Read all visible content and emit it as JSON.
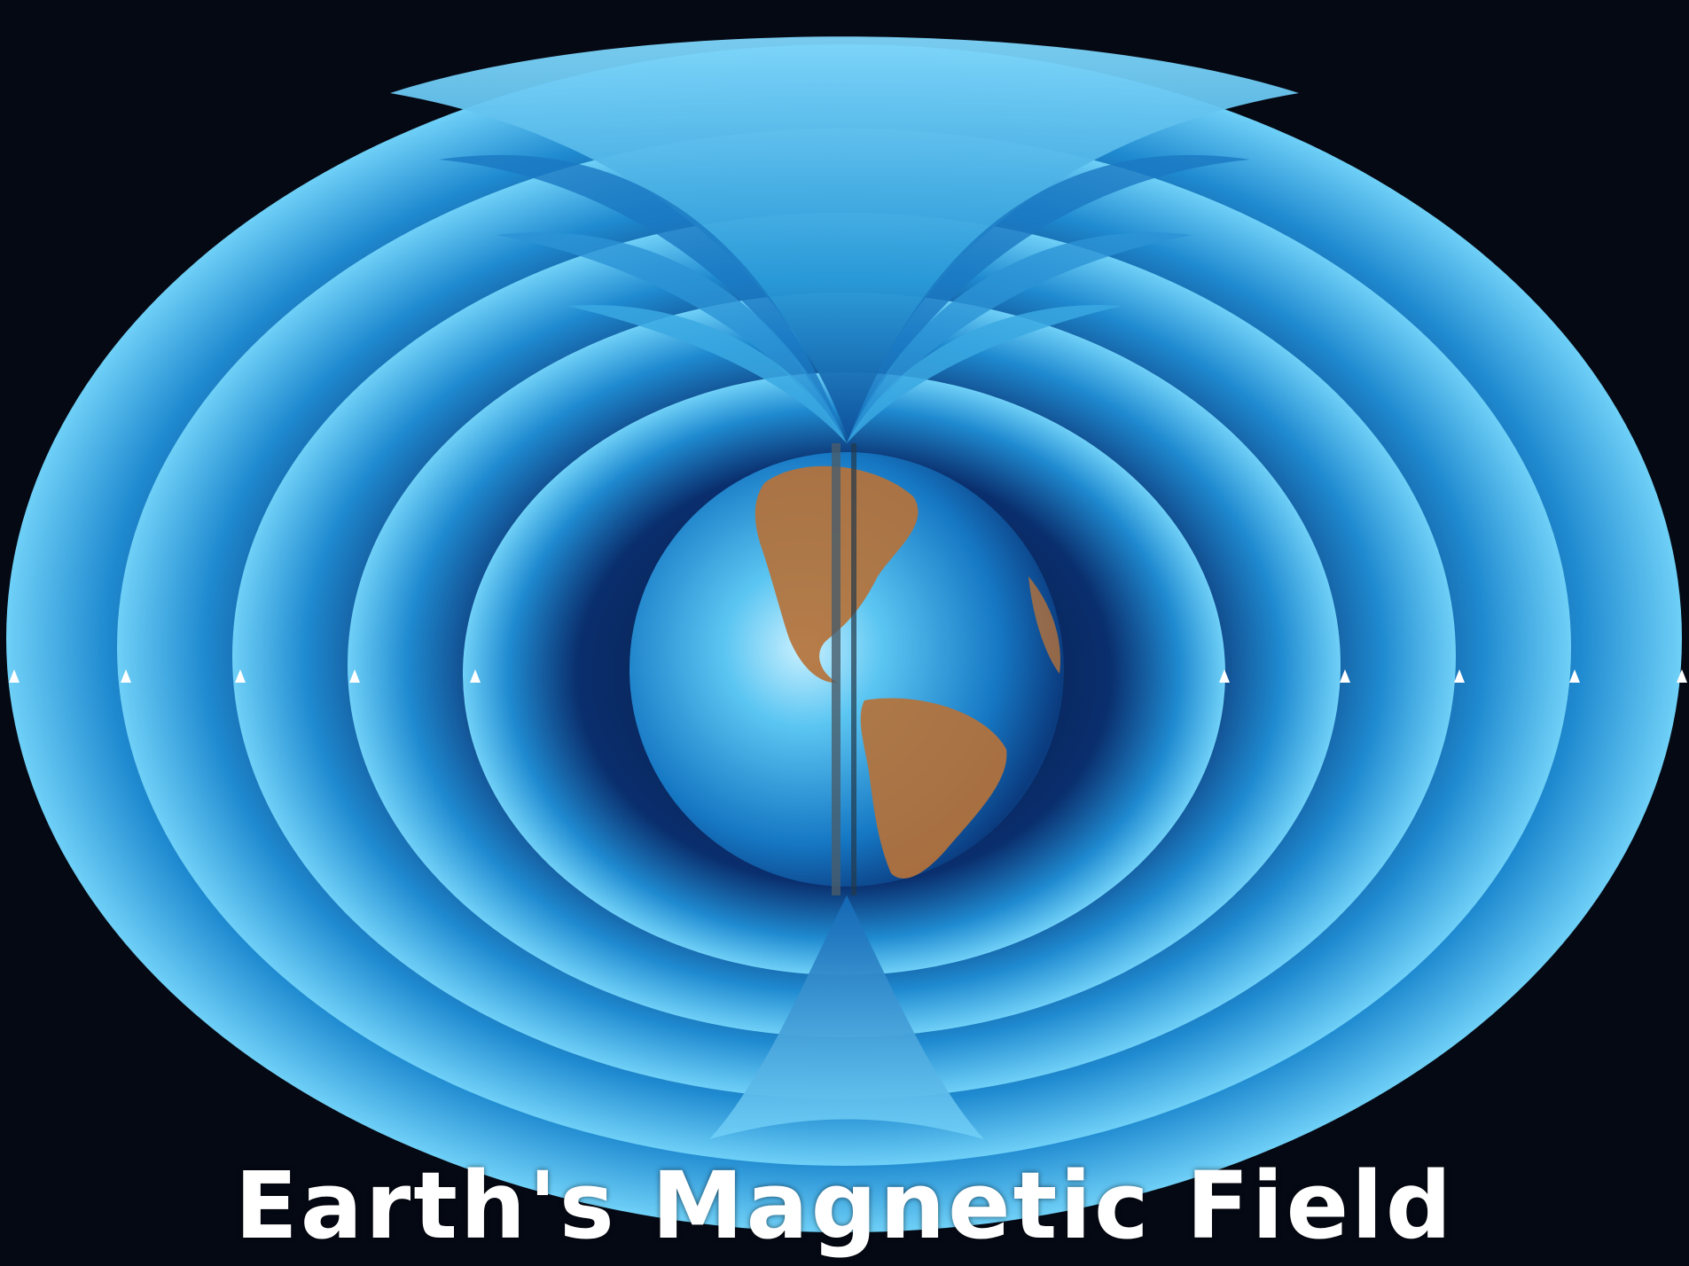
{
  "caption": "Earth's Magnetic Field",
  "colors": {
    "background": "#050914",
    "field_light": "#5cc6f2",
    "field_mid": "#1f8ad0",
    "field_dark": "#0a2f6e",
    "land": "#b5723a",
    "caption_text": "#ffffff"
  },
  "scene": {
    "field_shell_count": 4,
    "markers_per_side": 5,
    "icon": "earth-globe-icon"
  }
}
